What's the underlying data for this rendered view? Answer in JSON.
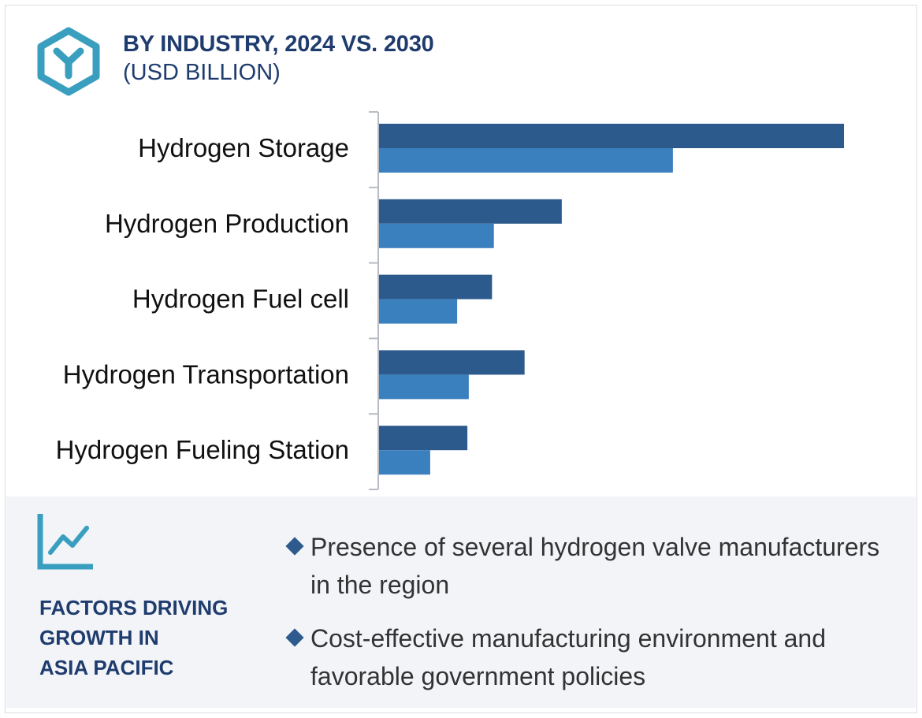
{
  "header": {
    "title": "BY INDUSTRY, 2024 VS. 2030",
    "subtitle": "(USD BILLION)",
    "icon": "hexagon-y-icon"
  },
  "colors": {
    "series_2030": "#2c5a8c",
    "series_2024": "#3a7fbe",
    "accent": "#3a9fbf",
    "heading": "#1f3c6e",
    "panel_bg": "#f2f4f8"
  },
  "chart_data": {
    "type": "bar",
    "orientation": "horizontal",
    "title": "BY INDUSTRY, 2024 VS. 2030",
    "subtitle": "(USD BILLION)",
    "categories": [
      "Hydrogen Storage",
      "Hydrogen Production",
      "Hydrogen Fuel cell",
      "Hydrogen Transportation",
      "Hydrogen Fueling Station"
    ],
    "series": [
      {
        "name": "2030",
        "values": [
          100,
          39.3,
          24.3,
          31.3,
          19
        ]
      },
      {
        "name": "2024",
        "values": [
          63.2,
          24.7,
          16.8,
          19.3,
          11
        ]
      }
    ],
    "xlim": [
      0,
      100
    ],
    "grid": false,
    "legend": "none"
  },
  "factors": {
    "icon": "line-chart-icon",
    "title_lines": [
      "FACTORS DRIVING",
      "GROWTH IN",
      "ASIA PACIFIC"
    ],
    "bullets": [
      "Presence of several hydrogen valve manufacturers in the region",
      "Cost-effective manufacturing environment and favorable government policies"
    ]
  }
}
